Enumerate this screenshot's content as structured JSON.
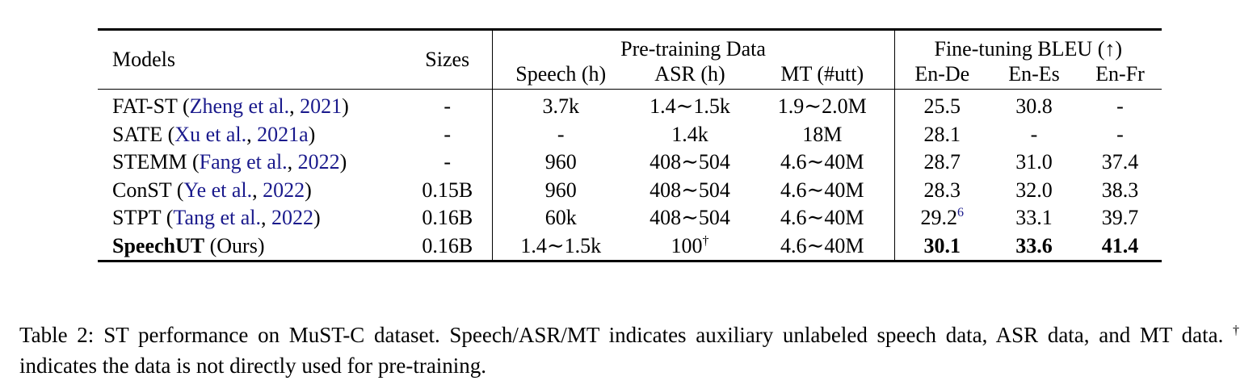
{
  "table": {
    "header": {
      "models": "Models",
      "sizes": "Sizes",
      "pretraining_group": "Pre-training Data",
      "finetuning_group": "Fine-tuning BLEU (↑)",
      "speech": "Speech (h)",
      "asr": "ASR (h)",
      "mt": "MT (#utt)",
      "en_de": "En-De",
      "en_es": "En-Es",
      "en_fr": "En-Fr"
    },
    "rows": [
      {
        "model": "FAT-ST",
        "cite_open": "(",
        "cite_authors": "Zheng et al.",
        "cite_sep": ", ",
        "cite_year": "2021",
        "cite_close": ")",
        "size": "-",
        "speech": "3.7k",
        "asr": "1.4∼1.5k",
        "mt": "1.9∼2.0M",
        "en_de": "25.5",
        "en_de_sup": "",
        "en_es": "30.8",
        "en_fr": "-"
      },
      {
        "model": "SATE",
        "cite_open": "(",
        "cite_authors": "Xu et al.",
        "cite_sep": ", ",
        "cite_year": "2021a",
        "cite_close": ")",
        "size": "-",
        "speech": "-",
        "asr": "1.4k",
        "mt": "18M",
        "en_de": "28.1",
        "en_de_sup": "",
        "en_es": "-",
        "en_fr": "-"
      },
      {
        "model": "STEMM",
        "cite_open": "(",
        "cite_authors": "Fang et al.",
        "cite_sep": ", ",
        "cite_year": "2022",
        "cite_close": ")",
        "size": "-",
        "speech": "960",
        "asr": "408∼504",
        "mt": "4.6∼40M",
        "en_de": "28.7",
        "en_de_sup": "",
        "en_es": "31.0",
        "en_fr": "37.4"
      },
      {
        "model": "ConST",
        "cite_open": "(",
        "cite_authors": "Ye et al.",
        "cite_sep": ", ",
        "cite_year": "2022",
        "cite_close": ")",
        "size": "0.15B",
        "speech": "960",
        "asr": "408∼504",
        "mt": "4.6∼40M",
        "en_de": "28.3",
        "en_de_sup": "",
        "en_es": "32.0",
        "en_fr": "38.3"
      },
      {
        "model": "STPT",
        "cite_open": "(",
        "cite_authors": "Tang et al.",
        "cite_sep": ", ",
        "cite_year": "2022",
        "cite_close": ")",
        "size": "0.16B",
        "speech": "60k",
        "asr": "408∼504",
        "mt": "4.6∼40M",
        "en_de": "29.2",
        "en_de_sup": "6",
        "en_es": "33.1",
        "en_fr": "39.7"
      }
    ],
    "ours": {
      "model": "SpeechUT",
      "suffix": "(Ours)",
      "size": "0.16B",
      "speech": "1.4∼1.5k",
      "asr": "100",
      "asr_sup": "†",
      "mt": "4.6∼40M",
      "en_de": "30.1",
      "en_es": "33.6",
      "en_fr": "41.4"
    }
  },
  "caption": {
    "label": "Table 2:",
    "text": "ST performance on MuST-C dataset. Speech/ASR/MT indicates auxiliary unlabeled speech data, ASR data, and MT data.",
    "dagger": "†",
    "text2": "indicates the data is not directly used for pre-training."
  }
}
